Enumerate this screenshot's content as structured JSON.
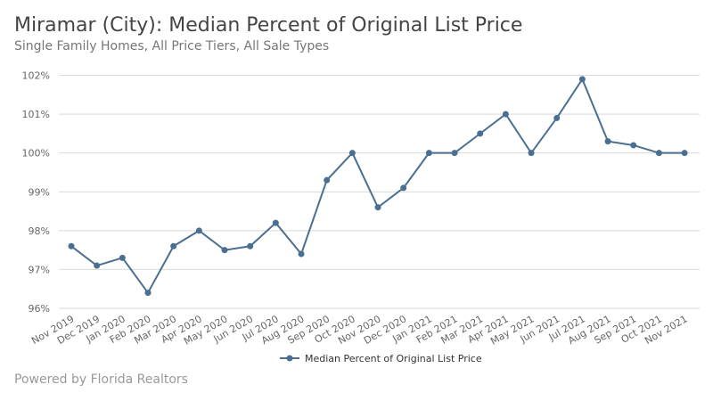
{
  "header": {
    "title": "Miramar (City): Median Percent of Original List Price",
    "subtitle": "Single Family Homes, All Price Tiers, All Sale Types"
  },
  "footer": {
    "text": "Powered by Florida Realtors"
  },
  "chart_data": {
    "type": "line",
    "title": "Miramar (City): Median Percent of Original List Price",
    "subtitle": "Single Family Homes, All Price Tiers, All Sale Types",
    "categories": [
      "Nov 2019",
      "Dec 2019",
      "Jan 2020",
      "Feb 2020",
      "Mar 2020",
      "Apr 2020",
      "May 2020",
      "Jun 2020",
      "Jul 2020",
      "Aug 2020",
      "Sep 2020",
      "Oct 2020",
      "Nov 2020",
      "Dec 2020",
      "Jan 2021",
      "Feb 2021",
      "Mar 2021",
      "Apr 2021",
      "May 2021",
      "Jun 2021",
      "Jul 2021",
      "Aug 2021",
      "Sep 2021",
      "Oct 2021",
      "Nov 2021"
    ],
    "series": [
      {
        "name": "Median Percent of Original List Price",
        "color": "#4a6f91",
        "values": [
          97.6,
          97.1,
          97.3,
          96.4,
          97.6,
          98.0,
          97.5,
          97.6,
          98.2,
          97.4,
          99.3,
          100.0,
          98.6,
          99.1,
          100.0,
          100.0,
          100.5,
          101.0,
          100.0,
          100.9,
          101.9,
          100.3,
          100.2,
          100.0,
          100.0
        ]
      }
    ],
    "ylim": [
      96,
      102
    ],
    "yticks": [
      96,
      97,
      98,
      99,
      100,
      101,
      102
    ],
    "ytick_labels": [
      "96%",
      "97%",
      "98%",
      "99%",
      "100%",
      "101%",
      "102%"
    ],
    "grid": true,
    "legend_placement": "bottom"
  }
}
